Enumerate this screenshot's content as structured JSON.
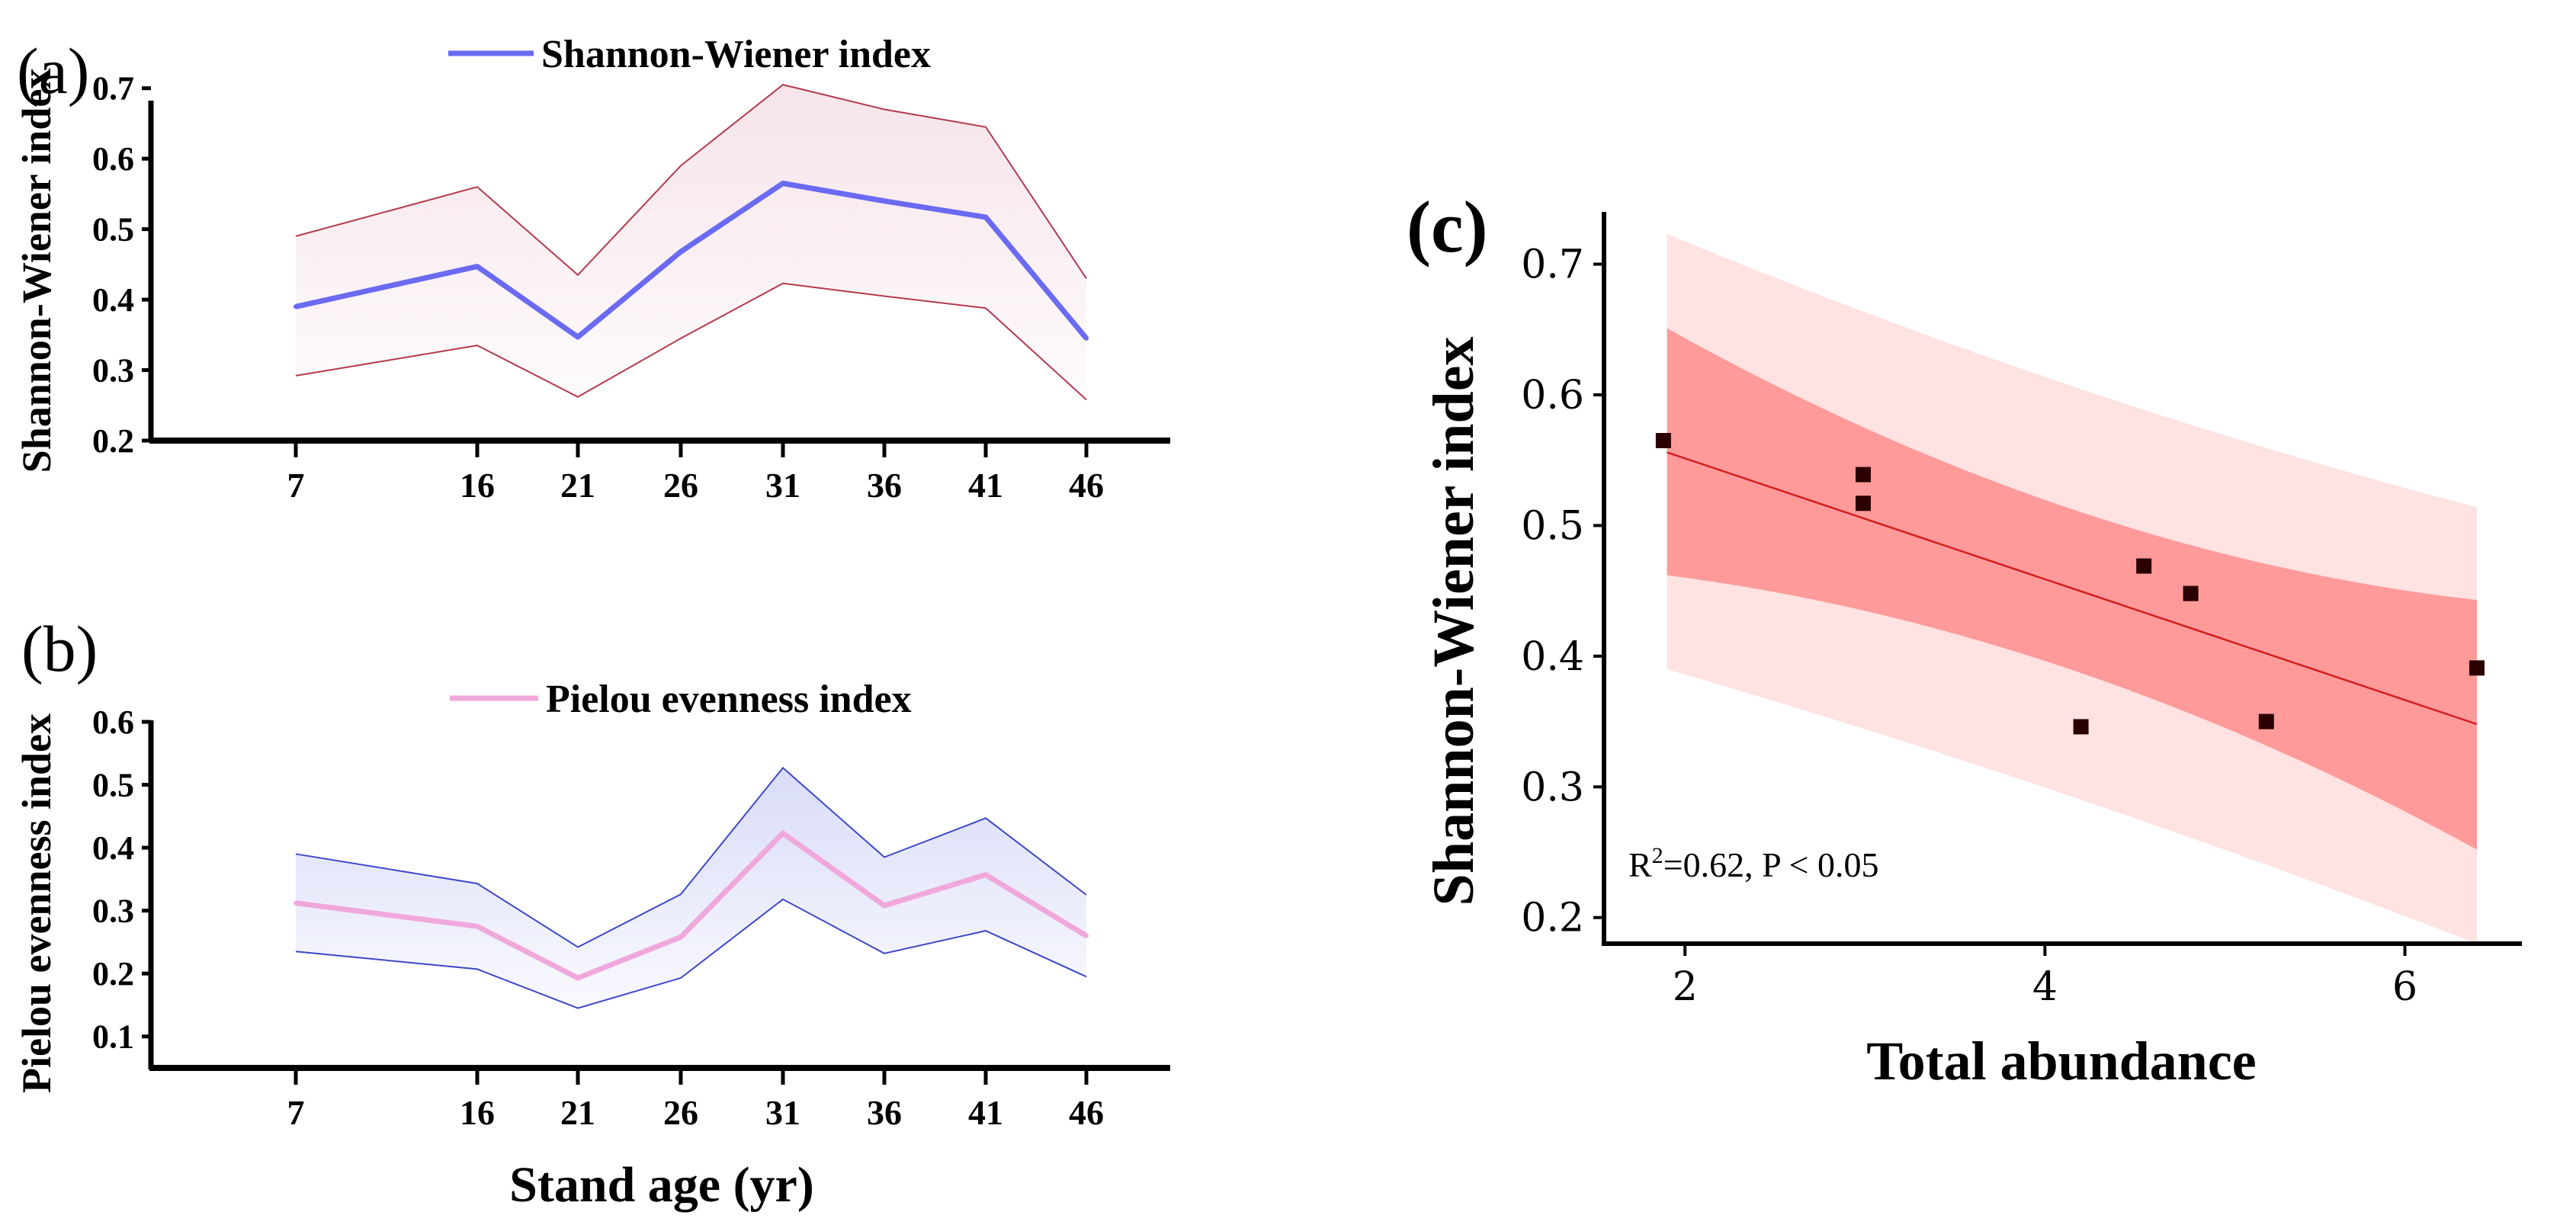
{
  "figure": {
    "panel_a_label": "(a)",
    "panel_b_label": "(b)",
    "panel_c_label": "(c)",
    "colors": {
      "shannon_line": "#6a6af2",
      "shannon_band_fill": "#f6e4ea",
      "shannon_band_edge": "#b23a4e",
      "pielou_line": "#f0a8dc",
      "pielou_band_fill": "#d9dcf8",
      "pielou_band_edge": "#3e48c8",
      "ci_inner": "#ff9a9a",
      "ci_outer": "#ffe2e2",
      "fit_line": "#d32020",
      "points": "#2a0000"
    }
  },
  "chart_data": [
    {
      "type": "line",
      "panel": "a",
      "title": "",
      "xlabel": "",
      "ylabel": "Shannon-Wiener index",
      "legend": "Shannon-Wiener index",
      "x": [
        7,
        16,
        21,
        26,
        31,
        36,
        41,
        46
      ],
      "xticks": [
        "7",
        "16",
        "21",
        "26",
        "31",
        "36",
        "41",
        "46"
      ],
      "yticks": [
        "0.2",
        "0.3",
        "0.4",
        "0.5",
        "0.6",
        "0.7"
      ],
      "ylim": [
        0.2,
        0.73
      ],
      "series": [
        {
          "name": "Shannon-Wiener index",
          "values": [
            0.39,
            0.447,
            0.347,
            0.468,
            0.565,
            0.54,
            0.517,
            0.345
          ]
        }
      ],
      "band_upper": [
        0.49,
        0.56,
        0.435,
        0.59,
        0.705,
        0.67,
        0.645,
        0.43
      ],
      "band_lower": [
        0.292,
        0.335,
        0.262,
        0.345,
        0.423,
        0.405,
        0.388,
        0.258
      ],
      "grid": false
    },
    {
      "type": "line",
      "panel": "b",
      "title": "",
      "xlabel": "Stand age (yr)",
      "ylabel": "Pielou evenness index",
      "legend": "Pielou evenness index",
      "x": [
        7,
        16,
        21,
        26,
        31,
        36,
        41,
        46
      ],
      "xticks": [
        "7",
        "16",
        "21",
        "26",
        "31",
        "36",
        "41",
        "46"
      ],
      "yticks": [
        "0.1",
        "0.2",
        "0.3",
        "0.4",
        "0.5",
        "0.6"
      ],
      "ylim": [
        0.05,
        0.6
      ],
      "series": [
        {
          "name": "Pielou evenness index",
          "values": [
            0.312,
            0.275,
            0.193,
            0.258,
            0.423,
            0.308,
            0.357,
            0.26
          ]
        }
      ],
      "band_upper": [
        0.39,
        0.343,
        0.242,
        0.326,
        0.527,
        0.385,
        0.447,
        0.325
      ],
      "band_lower": [
        0.235,
        0.207,
        0.145,
        0.193,
        0.318,
        0.232,
        0.268,
        0.195
      ],
      "grid": false
    },
    {
      "type": "scatter",
      "panel": "c",
      "title": "",
      "xlabel": "Total abundance",
      "ylabel": "Shannon-Wiener index",
      "xticks": [
        "2",
        "4",
        "6"
      ],
      "yticks": [
        "0.2",
        "0.3",
        "0.4",
        "0.5",
        "0.6",
        "0.7"
      ],
      "xlim": [
        1.55,
        6.65
      ],
      "ylim": [
        0.18,
        0.74
      ],
      "points": [
        {
          "x": 1.88,
          "y": 0.565
        },
        {
          "x": 2.99,
          "y": 0.539
        },
        {
          "x": 2.99,
          "y": 0.517
        },
        {
          "x": 4.2,
          "y": 0.346
        },
        {
          "x": 4.55,
          "y": 0.469
        },
        {
          "x": 4.81,
          "y": 0.448
        },
        {
          "x": 5.23,
          "y": 0.35
        },
        {
          "x": 6.4,
          "y": 0.391
        }
      ],
      "fit": {
        "x": [
          1.9,
          6.4
        ],
        "y": [
          0.556,
          0.348
        ]
      },
      "inner_band": {
        "x": [
          1.9,
          4.15,
          6.4
        ],
        "upper": [
          0.651,
          0.478,
          0.443
        ],
        "lower": [
          0.462,
          0.422,
          0.252
        ]
      },
      "outer_band": {
        "x": [
          1.9,
          4.15,
          6.4
        ],
        "upper": [
          0.723,
          0.595,
          0.514
        ],
        "lower": [
          0.39,
          0.3,
          0.18
        ]
      },
      "annotation": {
        "prefix": "R",
        "sup": "2",
        "suffix": "=0.62, P < 0.05"
      },
      "grid": false
    }
  ]
}
